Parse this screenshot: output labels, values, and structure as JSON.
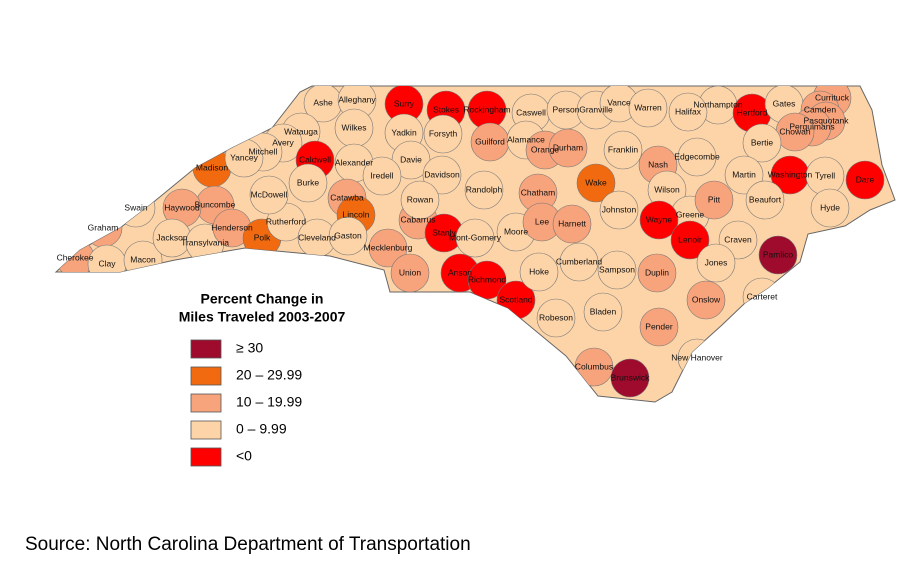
{
  "legend": {
    "title_line1": "Percent Change in",
    "title_line2": "Miles Traveled 2003-2007",
    "items": [
      {
        "label": "≥ 30",
        "color": "#9e0b2c"
      },
      {
        "label": "20 – 29.99",
        "color": "#f26a10"
      },
      {
        "label": "10 – 19.99",
        "color": "#f7a37c"
      },
      {
        "label": "0 – 9.99",
        "color": "#fdd4a8"
      },
      {
        "label": "<0",
        "color": "#ff0000"
      }
    ]
  },
  "counties": [
    {
      "name": "Ashe",
      "category": "0 – 9.99"
    },
    {
      "name": "Alleghany",
      "category": "0 – 9.99"
    },
    {
      "name": "Surry",
      "category": "<0"
    },
    {
      "name": "Stokes",
      "category": "<0"
    },
    {
      "name": "Rockingham",
      "category": "<0"
    },
    {
      "name": "Caswell",
      "category": "0 – 9.99"
    },
    {
      "name": "Person",
      "category": "0 – 9.99"
    },
    {
      "name": "Granville",
      "category": "0 – 9.99"
    },
    {
      "name": "Vance",
      "category": "0 – 9.99"
    },
    {
      "name": "Warren",
      "category": "0 – 9.99"
    },
    {
      "name": "Northampton",
      "category": "0 – 9.99"
    },
    {
      "name": "Hertford",
      "category": "<0"
    },
    {
      "name": "Gates",
      "category": "0 – 9.99"
    },
    {
      "name": "Currituck",
      "category": "10 – 19.99"
    },
    {
      "name": "Camden",
      "category": "10 – 19.99"
    },
    {
      "name": "Pasquotank",
      "category": "10 – 19.99"
    },
    {
      "name": "Perquimans",
      "category": "10 – 19.99"
    },
    {
      "name": "Chowan",
      "category": "10 – 19.99"
    },
    {
      "name": "Halifax",
      "category": "0 – 9.99"
    },
    {
      "name": "Bertie",
      "category": "0 – 9.99"
    },
    {
      "name": "Watauga",
      "category": "0 – 9.99"
    },
    {
      "name": "Wilkes",
      "category": "0 – 9.99"
    },
    {
      "name": "Yadkin",
      "category": "0 – 9.99"
    },
    {
      "name": "Forsyth",
      "category": "0 – 9.99"
    },
    {
      "name": "Guilford",
      "category": "10 – 19.99"
    },
    {
      "name": "Alamance",
      "category": "0 – 9.99"
    },
    {
      "name": "Orange",
      "category": "10 – 19.99"
    },
    {
      "name": "Durham",
      "category": "10 – 19.99"
    },
    {
      "name": "Franklin",
      "category": "0 – 9.99"
    },
    {
      "name": "Nash",
      "category": "10 – 19.99"
    },
    {
      "name": "Edgecombe",
      "category": "0 – 9.99"
    },
    {
      "name": "Martin",
      "category": "0 – 9.99"
    },
    {
      "name": "Washington",
      "category": "<0"
    },
    {
      "name": "Tyrell",
      "category": "0 – 9.99"
    },
    {
      "name": "Dare",
      "category": "<0"
    },
    {
      "name": "Avery",
      "category": "0 – 9.99"
    },
    {
      "name": "Mitchell",
      "category": "0 – 9.99"
    },
    {
      "name": "Caldwell",
      "category": "<0"
    },
    {
      "name": "Alexander",
      "category": "0 – 9.99"
    },
    {
      "name": "Davie",
      "category": "0 – 9.99"
    },
    {
      "name": "Iredell",
      "category": "0 – 9.99"
    },
    {
      "name": "Davidson",
      "category": "0 – 9.99"
    },
    {
      "name": "Randolph",
      "category": "0 – 9.99"
    },
    {
      "name": "Chatham",
      "category": "10 – 19.99"
    },
    {
      "name": "Wake",
      "category": "20 – 29.99"
    },
    {
      "name": "Johnston",
      "category": "0 – 9.99"
    },
    {
      "name": "Wilson",
      "category": "0 – 9.99"
    },
    {
      "name": "Greene",
      "category": "0 – 9.99"
    },
    {
      "name": "Pitt",
      "category": "10 – 19.99"
    },
    {
      "name": "Beaufort",
      "category": "0 – 9.99"
    },
    {
      "name": "Hyde",
      "category": "0 – 9.99"
    },
    {
      "name": "Madison",
      "category": "20 – 29.99"
    },
    {
      "name": "Yancey",
      "category": "0 – 9.99"
    },
    {
      "name": "Buncombe",
      "category": "10 – 19.99"
    },
    {
      "name": "Haywood",
      "category": "10 – 19.99"
    },
    {
      "name": "Swain",
      "category": "0 – 9.99"
    },
    {
      "name": "Graham",
      "category": "10 – 19.99"
    },
    {
      "name": "Cherokee",
      "category": "10 – 19.99"
    },
    {
      "name": "Clay",
      "category": "0 – 9.99"
    },
    {
      "name": "Macon",
      "category": "0 – 9.99"
    },
    {
      "name": "Jackson",
      "category": "0 – 9.99"
    },
    {
      "name": "Transylvania",
      "category": "0 – 9.99"
    },
    {
      "name": "Henderson",
      "category": "10 – 19.99"
    },
    {
      "name": "Polk",
      "category": "20 – 29.99"
    },
    {
      "name": "Rutherford",
      "category": "0 – 9.99"
    },
    {
      "name": "McDowell",
      "category": "0 – 9.99"
    },
    {
      "name": "Burke",
      "category": "0 – 9.99"
    },
    {
      "name": "Catawba",
      "category": "10 – 19.99"
    },
    {
      "name": "Lincoln",
      "category": "20 – 29.99"
    },
    {
      "name": "Cleveland",
      "category": "0 – 9.99"
    },
    {
      "name": "Gaston",
      "category": "0 – 9.99"
    },
    {
      "name": "Mecklenburg",
      "category": "10 – 19.99"
    },
    {
      "name": "Cabarrus",
      "category": "10 – 19.99"
    },
    {
      "name": "Rowan",
      "category": "0 – 9.99"
    },
    {
      "name": "Stanly",
      "category": "<0"
    },
    {
      "name": "Mont-Gomery",
      "category": "0 – 9.99"
    },
    {
      "name": "Moore",
      "category": "0 – 9.99"
    },
    {
      "name": "Lee",
      "category": "10 – 19.99"
    },
    {
      "name": "Harnett",
      "category": "10 – 19.99"
    },
    {
      "name": "Union",
      "category": "10 – 19.99"
    },
    {
      "name": "Anson",
      "category": "<0"
    },
    {
      "name": "Richmond",
      "category": "<0"
    },
    {
      "name": "Scotland",
      "category": "<0"
    },
    {
      "name": "Hoke",
      "category": "0 – 9.99"
    },
    {
      "name": "Cumberland",
      "category": "0 – 9.99"
    },
    {
      "name": "Sampson",
      "category": "0 – 9.99"
    },
    {
      "name": "Duplin",
      "category": "10 – 19.99"
    },
    {
      "name": "Wayne",
      "category": "<0"
    },
    {
      "name": "Lenoir",
      "category": "<0"
    },
    {
      "name": "Craven",
      "category": "0 – 9.99"
    },
    {
      "name": "Jones",
      "category": "0 – 9.99"
    },
    {
      "name": "Pamlico",
      "category": "≥ 30"
    },
    {
      "name": "Carteret",
      "category": "0 – 9.99"
    },
    {
      "name": "Onslow",
      "category": "10 – 19.99"
    },
    {
      "name": "Pender",
      "category": "10 – 19.99"
    },
    {
      "name": "Robeson",
      "category": "0 – 9.99"
    },
    {
      "name": "Bladen",
      "category": "0 – 9.99"
    },
    {
      "name": "Columbus",
      "category": "10 – 19.99"
    },
    {
      "name": "Brunswick",
      "category": "≥ 30"
    },
    {
      "name": "New Hanover",
      "category": "0 – 9.99"
    }
  ],
  "source": "Source: North Carolina Department of Transportation"
}
